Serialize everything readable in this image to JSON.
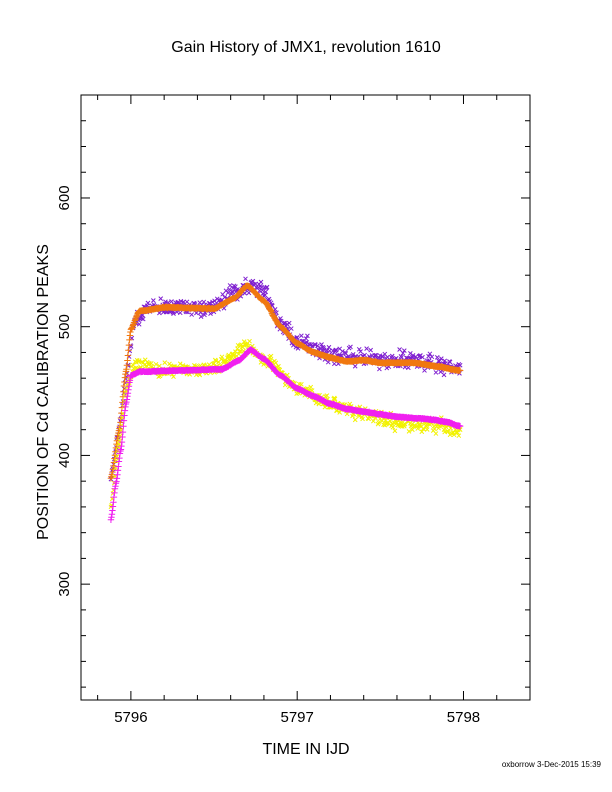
{
  "chart_data": {
    "type": "scatter",
    "title": "Gain History of JMX1, revolution 1610",
    "xlabel": "TIME IN IJD",
    "ylabel": "POSITION OF Cd CALIBRATION PEAKS",
    "xlim": [
      5795.7,
      5798.4
    ],
    "ylim": [
      210,
      680
    ],
    "x_ticks": [
      5796,
      5797,
      5798
    ],
    "y_ticks": [
      300,
      400,
      500,
      600
    ],
    "grid": false,
    "legend": "none",
    "footer": "oxborrow 3-Dec-2015 15:39",
    "series": [
      {
        "color": "#7f1fd0",
        "marker": "x",
        "anchors": [
          [
            5795.88,
            382
          ],
          [
            5795.93,
            420
          ],
          [
            5795.97,
            460
          ],
          [
            5796.02,
            505
          ],
          [
            5796.1,
            515
          ],
          [
            5796.3,
            515
          ],
          [
            5796.5,
            516
          ],
          [
            5796.62,
            526
          ],
          [
            5796.72,
            532
          ],
          [
            5796.8,
            528
          ],
          [
            5796.9,
            500
          ],
          [
            5797.0,
            490
          ],
          [
            5797.1,
            482
          ],
          [
            5797.2,
            478
          ],
          [
            5797.3,
            476
          ],
          [
            5797.5,
            474
          ],
          [
            5797.7,
            474
          ],
          [
            5797.85,
            470
          ],
          [
            5797.97,
            468
          ]
        ],
        "scatter": 10
      },
      {
        "color": "#f07810",
        "marker": "+",
        "anchors": [
          [
            5795.88,
            382
          ],
          [
            5795.93,
            420
          ],
          [
            5795.97,
            465
          ],
          [
            5796.0,
            498
          ],
          [
            5796.05,
            512
          ],
          [
            5796.2,
            515
          ],
          [
            5796.5,
            514
          ],
          [
            5796.62,
            522
          ],
          [
            5796.7,
            532
          ],
          [
            5796.8,
            520
          ],
          [
            5796.9,
            500
          ],
          [
            5797.0,
            487
          ],
          [
            5797.1,
            480
          ],
          [
            5797.2,
            476
          ],
          [
            5797.3,
            473
          ],
          [
            5797.4,
            474
          ],
          [
            5797.5,
            472
          ],
          [
            5797.7,
            472
          ],
          [
            5797.85,
            469
          ],
          [
            5797.97,
            466
          ]
        ],
        "scatter": 0
      },
      {
        "color": "#f2f200",
        "marker": "x",
        "anchors": [
          [
            5795.88,
            360
          ],
          [
            5795.93,
            410
          ],
          [
            5795.97,
            450
          ],
          [
            5796.02,
            470
          ],
          [
            5796.2,
            466
          ],
          [
            5796.5,
            468
          ],
          [
            5796.7,
            484
          ],
          [
            5796.8,
            476
          ],
          [
            5797.0,
            452
          ],
          [
            5797.2,
            440
          ],
          [
            5797.4,
            432
          ],
          [
            5797.6,
            425
          ],
          [
            5797.8,
            424
          ],
          [
            5797.97,
            420
          ]
        ],
        "scatter": 8
      },
      {
        "color": "#f020f0",
        "marker": "+",
        "anchors": [
          [
            5795.88,
            350
          ],
          [
            5795.91,
            378
          ],
          [
            5795.94,
            405
          ],
          [
            5795.97,
            440
          ],
          [
            5796.0,
            462
          ],
          [
            5796.05,
            465
          ],
          [
            5796.3,
            466
          ],
          [
            5796.55,
            467
          ],
          [
            5796.65,
            474
          ],
          [
            5796.72,
            482
          ],
          [
            5796.8,
            475
          ],
          [
            5796.9,
            462
          ],
          [
            5797.0,
            452
          ],
          [
            5797.1,
            446
          ],
          [
            5797.2,
            440
          ],
          [
            5797.3,
            436
          ],
          [
            5797.4,
            434
          ],
          [
            5797.5,
            432
          ],
          [
            5797.6,
            430
          ],
          [
            5797.7,
            429
          ],
          [
            5797.8,
            428
          ],
          [
            5797.9,
            426
          ],
          [
            5797.97,
            423
          ]
        ],
        "scatter": 0
      }
    ]
  }
}
